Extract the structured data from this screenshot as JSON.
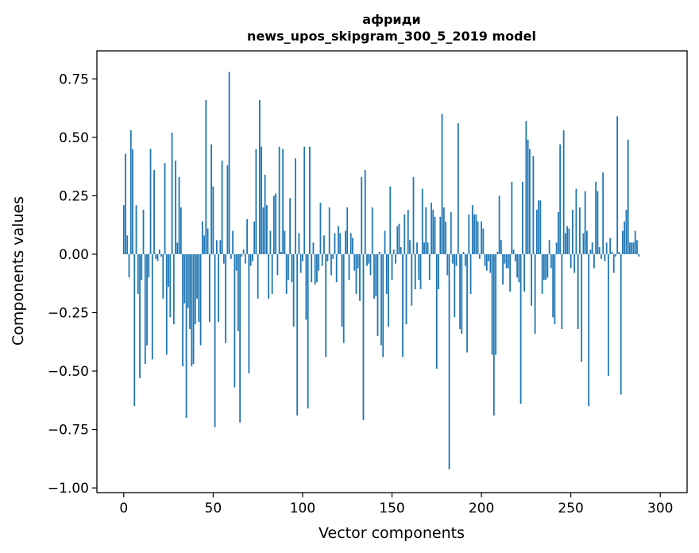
{
  "chart_data": {
    "type": "bar",
    "title": "африди",
    "subtitle": "news_upos_skipgram_300_5_2019 model",
    "xlabel": "Vector components",
    "ylabel": "Components values",
    "xlim": [
      -15,
      315
    ],
    "ylim": [
      -1.02,
      0.87
    ],
    "x_ticks": [
      0,
      50,
      100,
      150,
      200,
      250,
      300
    ],
    "x_tick_labels": [
      "0",
      "50",
      "100",
      "150",
      "200",
      "250",
      "300"
    ],
    "y_ticks": [
      0.75,
      0.5,
      0.25,
      0.0,
      -0.25,
      -0.5,
      -0.75,
      -1.0
    ],
    "y_tick_labels": [
      "0.75",
      "0.50",
      "0.25",
      "0.00",
      "−0.25",
      "−0.50",
      "−0.75",
      "−1.00"
    ],
    "grid": false,
    "bar_color": "#1f77b4",
    "values": [
      0.21,
      0.43,
      0.08,
      -0.1,
      0.53,
      0.45,
      -0.65,
      0.21,
      -0.17,
      -0.53,
      -0.11,
      0.19,
      -0.47,
      -0.39,
      -0.1,
      0.45,
      -0.45,
      0.36,
      -0.02,
      -0.03,
      0.02,
      -0.01,
      -0.19,
      0.39,
      -0.43,
      -0.14,
      -0.27,
      0.52,
      -0.3,
      0.4,
      0.05,
      0.33,
      0.2,
      -0.48,
      -0.21,
      -0.7,
      -0.23,
      -0.32,
      -0.48,
      -0.47,
      -0.3,
      -0.19,
      -0.29,
      -0.39,
      0.14,
      0.08,
      0.66,
      0.11,
      -0.29,
      0.47,
      0.29,
      -0.74,
      0.06,
      -0.29,
      0.06,
      0.4,
      -0.04,
      -0.38,
      0.38,
      0.78,
      -0.02,
      0.1,
      -0.57,
      -0.07,
      -0.33,
      -0.72,
      -0.01,
      0.02,
      -0.04,
      0.15,
      -0.51,
      -0.05,
      -0.03,
      0.14,
      0.45,
      -0.19,
      0.66,
      0.46,
      0.2,
      0.34,
      0.21,
      -0.19,
      0.1,
      -0.17,
      0.25,
      0.26,
      -0.09,
      0.46,
      0.01,
      0.45,
      0.1,
      -0.17,
      -0.11,
      0.24,
      -0.12,
      -0.31,
      0.41,
      -0.69,
      0.09,
      -0.08,
      -0.03,
      0.46,
      -0.28,
      -0.66,
      0.46,
      -0.12,
      0.05,
      -0.13,
      -0.12,
      -0.07,
      0.22,
      -0.05,
      0.08,
      -0.44,
      -0.03,
      0.2,
      -0.09,
      -0.02,
      0.09,
      -0.12,
      0.12,
      0.09,
      -0.31,
      -0.38,
      0.1,
      0.2,
      -0.11,
      0.09,
      0.07,
      -0.07,
      -0.17,
      -0.06,
      -0.2,
      0.33,
      -0.71,
      0.36,
      -0.05,
      -0.04,
      -0.09,
      0.2,
      -0.19,
      -0.18,
      -0.35,
      0.01,
      -0.39,
      -0.44,
      0.1,
      -0.17,
      -0.31,
      0.29,
      -0.11,
      0.02,
      -0.04,
      0.12,
      0.13,
      0.03,
      -0.44,
      0.17,
      -0.3,
      0.19,
      0.06,
      -0.22,
      0.33,
      -0.15,
      0.05,
      -0.11,
      -0.15,
      0.28,
      0.05,
      0.2,
      0.05,
      -0.11,
      0.22,
      0.19,
      0.16,
      -0.49,
      -0.15,
      0.16,
      0.6,
      0.2,
      0.14,
      -0.09,
      -0.92,
      0.18,
      -0.04,
      -0.27,
      -0.05,
      0.56,
      -0.32,
      -0.34,
      0.01,
      -0.05,
      -0.42,
      0.17,
      -0.17,
      0.21,
      0.17,
      0.17,
      0.14,
      -0.02,
      0.14,
      0.11,
      -0.05,
      -0.07,
      -0.03,
      -0.08,
      -0.43,
      -0.69,
      -0.43,
      0.01,
      0.25,
      0.06,
      -0.13,
      -0.04,
      -0.06,
      -0.06,
      -0.16,
      0.31,
      0.02,
      -0.03,
      -0.1,
      -0.12,
      -0.64,
      0.31,
      -0.16,
      0.57,
      0.49,
      0.45,
      -0.22,
      0.42,
      -0.34,
      0.19,
      0.23,
      0.23,
      -0.17,
      -0.11,
      -0.11,
      -0.1,
      0.06,
      -0.06,
      -0.27,
      -0.3,
      0.05,
      0.18,
      0.47,
      -0.32,
      0.53,
      0.09,
      0.12,
      0.11,
      -0.06,
      0.19,
      -0.08,
      0.28,
      -0.32,
      0.2,
      -0.46,
      0.09,
      0.27,
      0.1,
      -0.65,
      0.02,
      0.05,
      -0.06,
      0.31,
      0.27,
      0.03,
      -0.02,
      0.35,
      -0.03,
      0.05,
      -0.52,
      0.07,
      0.01,
      -0.08,
      -0.01,
      0.59,
      0.01,
      -0.6,
      0.1,
      0.14,
      0.19,
      0.49,
      0.05,
      0.05,
      0.05,
      0.1,
      0.06,
      -0.01
    ]
  }
}
